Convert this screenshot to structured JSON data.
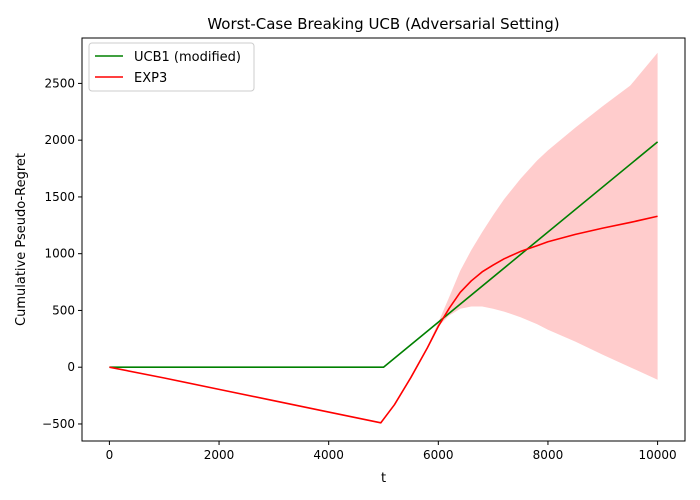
{
  "chart_data": {
    "type": "line",
    "title": "Worst-Case Breaking UCB (Adversarial Setting)",
    "xlabel": "t",
    "ylabel": "Cumulative Pseudo-Regret",
    "xlim": [
      -500,
      10500
    ],
    "ylim": [
      -650,
      2900
    ],
    "xticks": [
      0,
      2000,
      4000,
      6000,
      8000,
      10000
    ],
    "yticks": [
      -500,
      0,
      500,
      1000,
      1500,
      2000,
      2500
    ],
    "grid": false,
    "legend_position": "top-left",
    "series": [
      {
        "name": "UCB1 (modified)",
        "color": "#008000",
        "x": [
          0,
          5000,
          10000
        ],
        "y": [
          0,
          0,
          1985
        ]
      },
      {
        "name": "EXP3",
        "color": "#ff0000",
        "x": [
          0,
          1000,
          2000,
          3000,
          4000,
          4950,
          5200,
          5500,
          5800,
          6000,
          6200,
          6400,
          6600,
          6800,
          7000,
          7200,
          7500,
          7800,
          8000,
          8500,
          9000,
          9500,
          10000
        ],
        "y": [
          0,
          -95,
          -195,
          -295,
          -395,
          -490,
          -330,
          -90,
          170,
          360,
          520,
          660,
          760,
          840,
          900,
          955,
          1020,
          1070,
          1105,
          1170,
          1225,
          1275,
          1330
        ],
        "band": {
          "color": "#ff9999",
          "upper": [
            0,
            -95,
            -195,
            -295,
            -395,
            -490,
            -330,
            -90,
            180,
            395,
            620,
            850,
            1030,
            1190,
            1340,
            1480,
            1660,
            1820,
            1910,
            2110,
            2300,
            2480,
            2770
          ],
          "lower": [
            0,
            -95,
            -195,
            -295,
            -395,
            -490,
            -330,
            -90,
            160,
            360,
            455,
            515,
            535,
            535,
            515,
            490,
            440,
            380,
            330,
            225,
            110,
            0,
            -110
          ]
        }
      }
    ]
  }
}
